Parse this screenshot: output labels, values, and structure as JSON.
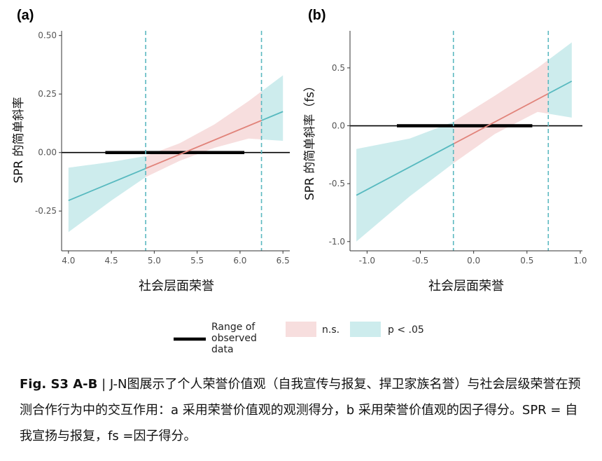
{
  "chart_data": [
    {
      "panel_label": "(a)",
      "type": "line",
      "ylabel": "SPR 的简单斜率",
      "xlabel": "社会层面荣誉",
      "x_ticks": [
        "4.0",
        "4.5",
        "5.0",
        "5.5",
        "6.0",
        "6.5"
      ],
      "y_ticks": [
        "-0.25",
        "0.00",
        "0.25",
        "0.50"
      ],
      "xlim": [
        3.92,
        6.58
      ],
      "ylim": [
        -0.42,
        0.52
      ],
      "line": {
        "x": [
          4.0,
          6.5
        ],
        "y": [
          -0.205,
          0.175
        ]
      },
      "band": {
        "x": [
          4.0,
          4.5,
          4.9,
          5.3,
          5.7,
          6.1,
          6.5
        ],
        "lower": [
          -0.34,
          -0.205,
          -0.105,
          -0.035,
          0.02,
          0.06,
          0.05
        ],
        "upper": [
          -0.065,
          -0.04,
          -0.015,
          0.04,
          0.12,
          0.22,
          0.33
        ]
      },
      "jn_points": [
        4.9,
        6.25
      ],
      "observed_range": [
        4.43,
        6.05
      ],
      "reference_y": 0
    },
    {
      "panel_label": "(b)",
      "type": "line",
      "ylabel": "SPR 的简单斜率（fs）",
      "xlabel": "社会层面荣誉",
      "x_ticks": [
        "-1.0",
        "-0.5",
        "0.0",
        "0.5",
        "1.0"
      ],
      "y_ticks": [
        "-1.0",
        "-0.5",
        "0.0",
        "0.5"
      ],
      "xlim": [
        -1.16,
        1.02
      ],
      "ylim": [
        -1.08,
        0.82
      ],
      "line": {
        "x": [
          -1.1,
          0.92
        ],
        "y": [
          -0.6,
          0.385
        ]
      },
      "band": {
        "x": [
          -1.1,
          -0.6,
          -0.2,
          0.2,
          0.6,
          0.92
        ],
        "lower": [
          -1.0,
          -0.61,
          -0.33,
          -0.07,
          0.12,
          0.07
        ],
        "upper": [
          -0.2,
          -0.11,
          0.03,
          0.26,
          0.5,
          0.72
        ]
      },
      "jn_points": [
        -0.19,
        0.7
      ],
      "observed_range": [
        -0.72,
        0.55
      ],
      "reference_y": 0
    }
  ],
  "legend": {
    "observed_label": [
      "Range of",
      "observed",
      "data"
    ],
    "ns_label": "n.s.",
    "sig_label": "p < .05"
  },
  "colors": {
    "ns_band": "#f7dede",
    "sig_band": "#cdeced",
    "ns_line": "#e1837a",
    "sig_line": "#57b9bf",
    "jn_line": "#5bb8c0",
    "observed_bar": "#000000"
  },
  "caption": {
    "figure_id": "Fig. S3 A-B",
    "text": "| J-N图展示了个人荣誉价值观（自我宣传与报复、捍卫家族名誉）与社会层级荣誉在预测合作行为中的交互作用：a 采用荣誉价值观的观测得分，b 采用荣誉价值观的因子得分。SPR = 自我宣扬与报复，fs =因子得分。"
  }
}
